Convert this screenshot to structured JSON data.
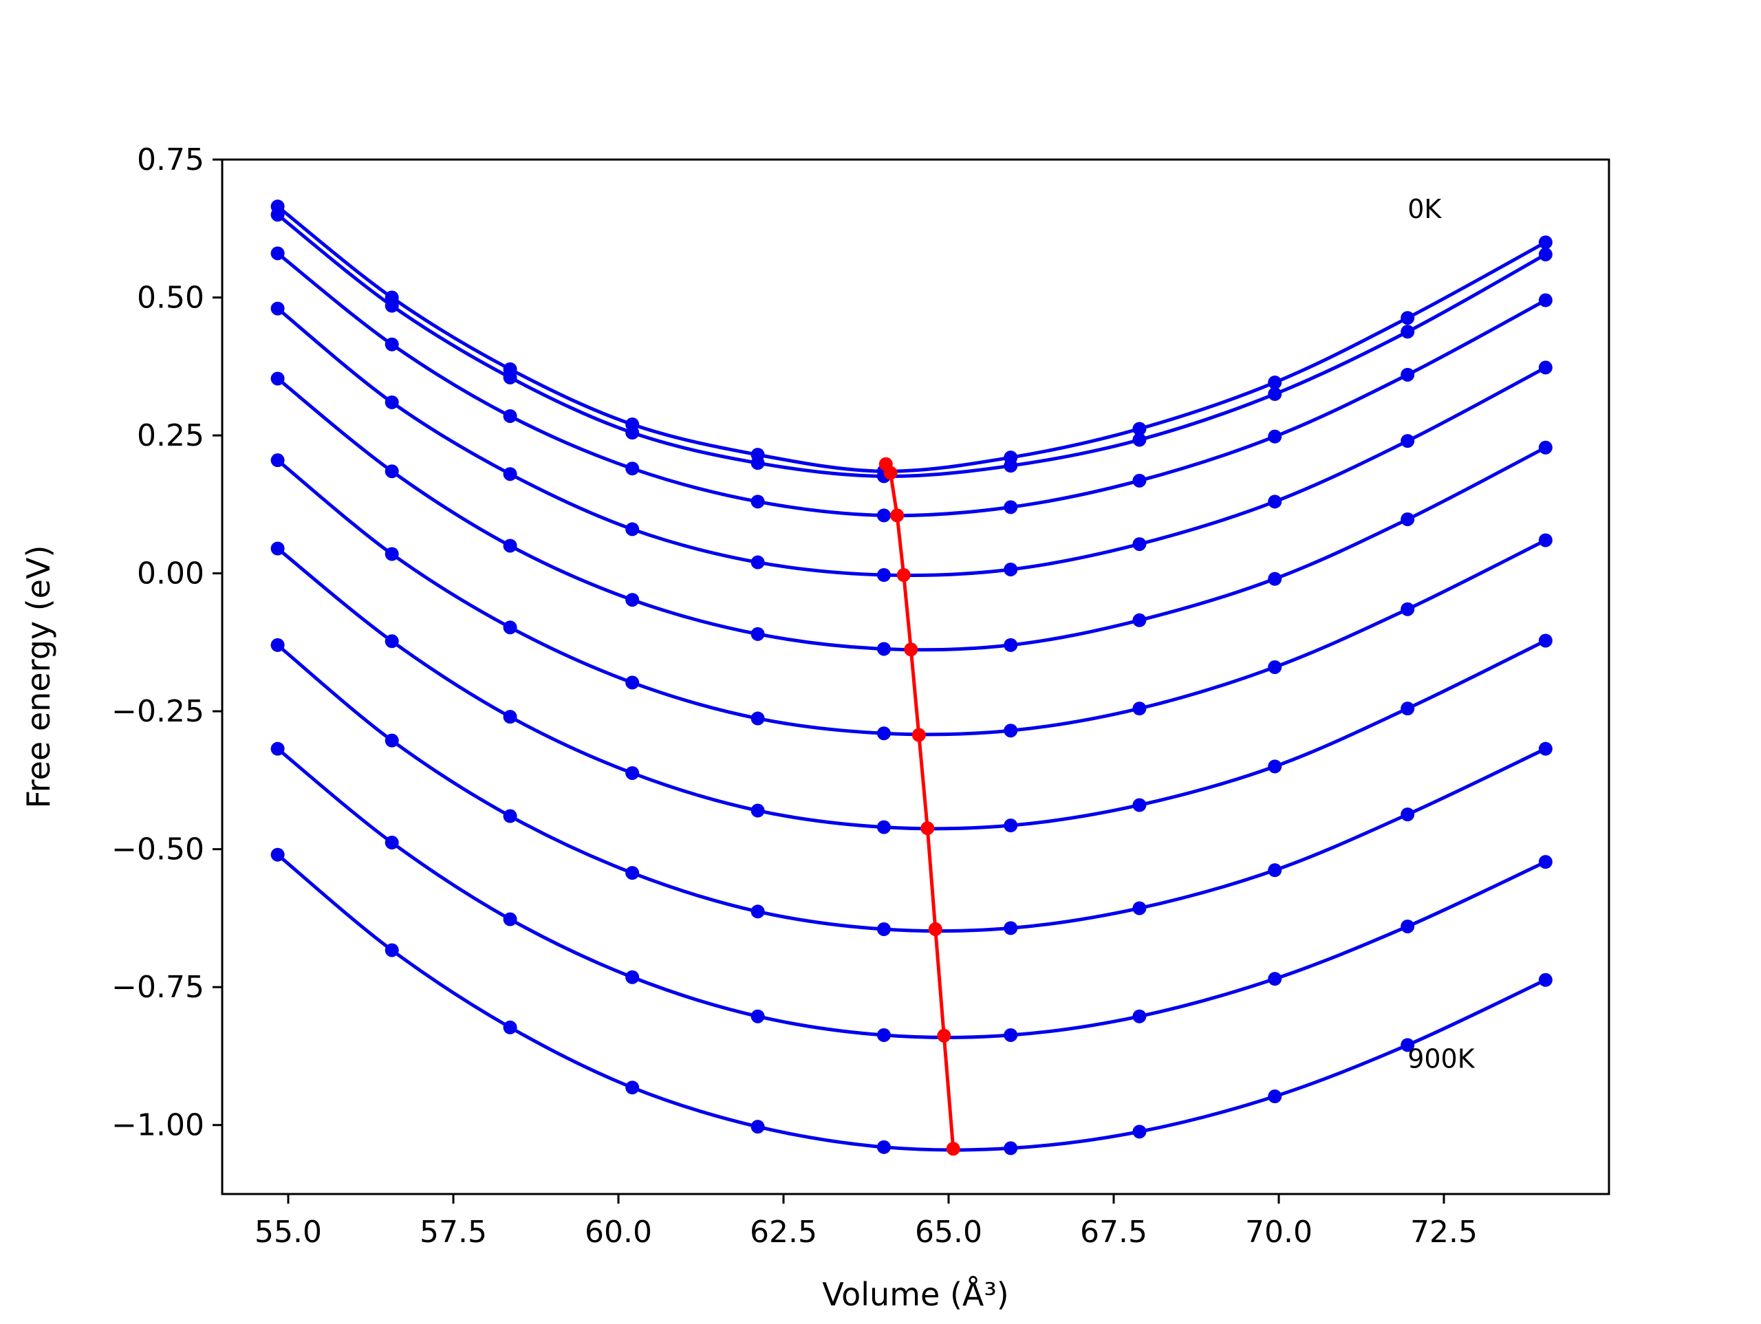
{
  "chart_data": {
    "type": "line",
    "xlabel": "Volume (Å³)",
    "ylabel": "Free energy (eV)",
    "xlim": [
      54.0,
      75.0
    ],
    "ylim": [
      -1.125,
      0.75
    ],
    "xticks": [
      55.0,
      57.5,
      60.0,
      62.5,
      65.0,
      67.5,
      70.0,
      72.5
    ],
    "xtick_labels": [
      "55.0",
      "57.5",
      "60.0",
      "62.5",
      "65.0",
      "67.5",
      "70.0",
      "72.5"
    ],
    "yticks": [
      0.75,
      0.5,
      0.25,
      0.0,
      -0.25,
      -0.5,
      -0.75,
      -1.0
    ],
    "ytick_labels": [
      "0.75",
      "0.50",
      "0.25",
      "0.00",
      "−0.25",
      "−0.50",
      "−0.75",
      "−1.00"
    ],
    "grid": false,
    "legend": false,
    "annotations": [
      {
        "text": "0K",
        "x": 71.95,
        "y": 0.66
      },
      {
        "text": "900K",
        "x": 71.95,
        "y": -0.88
      }
    ],
    "colors": {
      "curves": "#0000ee",
      "minimum_path": "#ff0000"
    },
    "x": [
      54.84,
      56.57,
      58.36,
      60.21,
      62.11,
      64.02,
      65.94,
      67.89,
      69.94,
      71.95,
      74.04
    ],
    "series": [
      {
        "values": [
          0.665,
          0.5,
          0.37,
          0.27,
          0.215,
          0.185,
          0.21,
          0.262,
          0.346,
          0.463,
          0.6
        ]
      },
      {
        "values": [
          0.65,
          0.485,
          0.355,
          0.255,
          0.2,
          0.176,
          0.195,
          0.242,
          0.325,
          0.438,
          0.578
        ]
      },
      {
        "values": [
          0.58,
          0.415,
          0.285,
          0.19,
          0.13,
          0.105,
          0.12,
          0.168,
          0.248,
          0.36,
          0.495
        ]
      },
      {
        "values": [
          0.48,
          0.31,
          0.18,
          0.08,
          0.02,
          -0.003,
          0.007,
          0.053,
          0.13,
          0.24,
          0.373
        ]
      },
      {
        "values": [
          0.353,
          0.185,
          0.05,
          -0.048,
          -0.11,
          -0.137,
          -0.13,
          -0.085,
          -0.01,
          0.098,
          0.228
        ]
      },
      {
        "values": [
          0.205,
          0.035,
          -0.098,
          -0.198,
          -0.263,
          -0.29,
          -0.285,
          -0.245,
          -0.17,
          -0.065,
          0.06
        ]
      },
      {
        "values": [
          0.045,
          -0.123,
          -0.26,
          -0.362,
          -0.43,
          -0.46,
          -0.457,
          -0.42,
          -0.35,
          -0.245,
          -0.122
        ]
      },
      {
        "values": [
          -0.13,
          -0.303,
          -0.44,
          -0.543,
          -0.613,
          -0.645,
          -0.643,
          -0.607,
          -0.538,
          -0.437,
          -0.318
        ]
      },
      {
        "values": [
          -0.318,
          -0.488,
          -0.627,
          -0.732,
          -0.803,
          -0.837,
          -0.837,
          -0.803,
          -0.735,
          -0.64,
          -0.523
        ]
      },
      {
        "values": [
          -0.51,
          -0.683,
          -0.823,
          -0.932,
          -1.003,
          -1.04,
          -1.042,
          -1.012,
          -0.948,
          -0.855,
          -0.737
        ]
      }
    ],
    "minimum_path": {
      "x": [
        64.05,
        64.12,
        64.22,
        64.32,
        64.43,
        64.55,
        64.68,
        64.8,
        64.93,
        65.07
      ],
      "y": [
        0.198,
        0.182,
        0.105,
        -0.003,
        -0.138,
        -0.293,
        -0.462,
        -0.645,
        -0.838,
        -1.043
      ]
    }
  }
}
